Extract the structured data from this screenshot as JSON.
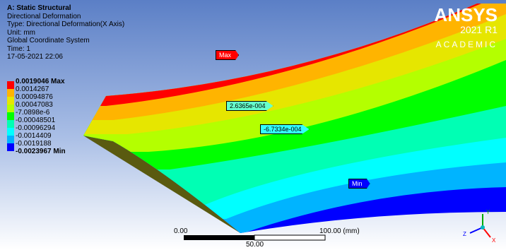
{
  "header": {
    "lines": [
      "A: Static Structural",
      "Directional Deformation",
      "Type: Directional Deformation(X Axis)",
      "Unit: mm",
      "Global Coordinate System",
      "Time: 1",
      "17-05-2021 22:06"
    ]
  },
  "legend": {
    "labels": [
      "0.0019046 Max",
      "0.0014267",
      "0.00094876",
      "0.00047083",
      "-7.0898e-6",
      "-0.00048501",
      "-0.00096294",
      "-0.0014409",
      "-0.0019188",
      "-0.0023967 Min"
    ],
    "colors": [
      "#ff0000",
      "#ffb400",
      "#e6e600",
      "#b4ff00",
      "#00ff00",
      "#00ffb4",
      "#00ffff",
      "#00b4ff",
      "#0000ff"
    ]
  },
  "probes": [
    {
      "label": "Max",
      "color": "#ff0000"
    },
    {
      "label": "2.6365e-004",
      "color": "#66ffcc"
    },
    {
      "label": "-6.7334e-004",
      "color": "#33ffff"
    },
    {
      "label": "Min",
      "color": "#0000ff"
    }
  ],
  "logo": {
    "brand": "ANSYS",
    "version": "2021 R1",
    "edition": "ACADEMIC"
  },
  "scale": {
    "left": "0.00",
    "right": "100.00 (mm)",
    "middle": "50.00"
  },
  "triad": {
    "y": "Y",
    "z": "Z",
    "x": "X"
  }
}
